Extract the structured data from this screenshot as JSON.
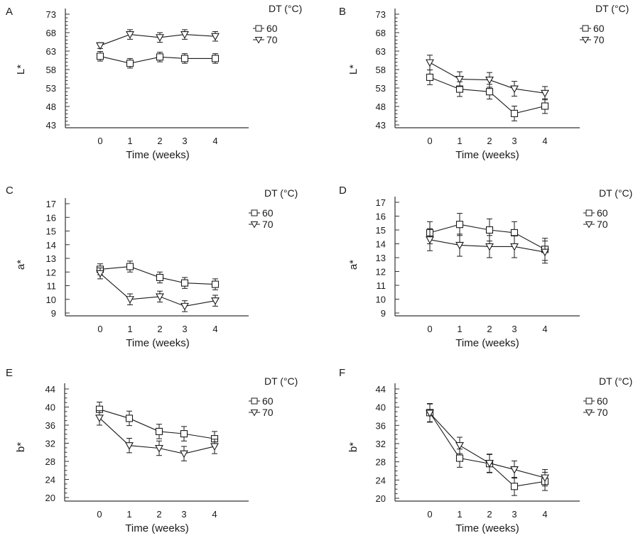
{
  "legend": {
    "title": "DT (°C)",
    "entries": [
      {
        "label": "60",
        "marker": "square-icon"
      },
      {
        "label": "70",
        "marker": "triangle-down-icon"
      }
    ]
  },
  "colors": {
    "line": "#1a1a1a",
    "axis": "#333333",
    "background": "#ffffff"
  },
  "chart_data": [
    {
      "type": "line",
      "panel": "A",
      "title": "",
      "xlabel": "Time (weeks)",
      "ylabel": "L*",
      "x": [
        0,
        1,
        2,
        3,
        4
      ],
      "x_ticks": [
        "0",
        "1",
        "2",
        "3",
        "4"
      ],
      "ylim": [
        43,
        73
      ],
      "y_ticks": [
        43,
        48,
        53,
        58,
        63,
        68,
        73
      ],
      "legend_title": "DT (°C)",
      "legend_position": "right",
      "grid": false,
      "series": [
        {
          "name": "60",
          "marker": "square",
          "values": [
            61.6,
            59.7,
            61.4,
            61.0,
            61.0
          ],
          "error": [
            1.3,
            1.3,
            1.3,
            1.3,
            1.3
          ]
        },
        {
          "name": "70",
          "marker": "triangle-down",
          "values": [
            64.5,
            67.5,
            66.7,
            67.5,
            67.0
          ],
          "error": [
            0.8,
            1.3,
            1.3,
            1.3,
            1.3
          ]
        }
      ]
    },
    {
      "type": "line",
      "panel": "B",
      "title": "",
      "xlabel": "Time (weeks)",
      "ylabel": "L*",
      "x": [
        0,
        1,
        2,
        3,
        4
      ],
      "x_ticks": [
        "0",
        "1",
        "2",
        "3",
        "4"
      ],
      "ylim": [
        43,
        73
      ],
      "y_ticks": [
        43,
        48,
        53,
        58,
        63,
        68,
        73
      ],
      "legend_title": "DT (°C)",
      "legend_position": "right",
      "grid": false,
      "series": [
        {
          "name": "60",
          "marker": "square",
          "values": [
            55.9,
            52.7,
            52.0,
            46.1,
            48.1
          ],
          "error": [
            2.0,
            2.0,
            2.0,
            2.0,
            2.0
          ]
        },
        {
          "name": "70",
          "marker": "triangle-down",
          "values": [
            59.9,
            55.4,
            55.2,
            52.8,
            51.6
          ],
          "error": [
            2.0,
            2.0,
            2.0,
            2.0,
            1.8
          ]
        }
      ]
    },
    {
      "type": "line",
      "panel": "C",
      "title": "",
      "xlabel": "Time (weeks)",
      "ylabel": "a*",
      "x": [
        0,
        1,
        2,
        3,
        4
      ],
      "x_ticks": [
        "0",
        "1",
        "2",
        "3",
        "4"
      ],
      "ylim": [
        9,
        17
      ],
      "y_ticks": [
        9,
        10,
        11,
        12,
        13,
        14,
        15,
        16,
        17
      ],
      "legend_title": "DT (°C)",
      "legend_position": "right",
      "grid": false,
      "series": [
        {
          "name": "60",
          "marker": "square",
          "values": [
            12.2,
            12.4,
            11.6,
            11.2,
            11.1
          ],
          "error": [
            0.4,
            0.4,
            0.4,
            0.4,
            0.4
          ]
        },
        {
          "name": "70",
          "marker": "triangle-down",
          "values": [
            11.9,
            10.0,
            10.2,
            9.5,
            9.9
          ],
          "error": [
            0.4,
            0.4,
            0.4,
            0.4,
            0.4
          ]
        }
      ]
    },
    {
      "type": "line",
      "panel": "D",
      "title": "",
      "xlabel": "Time (weeks)",
      "ylabel": "a*",
      "x": [
        0,
        1,
        2,
        3,
        4
      ],
      "x_ticks": [
        "0",
        "1",
        "2",
        "3",
        "4"
      ],
      "ylim": [
        9,
        17
      ],
      "y_ticks": [
        9,
        10,
        11,
        12,
        13,
        14,
        15,
        16,
        17
      ],
      "legend_title": "DT (°C)",
      "legend_position": "right",
      "grid": false,
      "series": [
        {
          "name": "60",
          "marker": "square",
          "values": [
            14.8,
            15.4,
            15.0,
            14.8,
            13.6
          ],
          "error": [
            0.8,
            0.8,
            0.8,
            0.8,
            0.8
          ]
        },
        {
          "name": "70",
          "marker": "triangle-down",
          "values": [
            14.3,
            13.9,
            13.8,
            13.8,
            13.4
          ],
          "error": [
            0.8,
            0.8,
            0.8,
            0.8,
            0.8
          ]
        }
      ]
    },
    {
      "type": "line",
      "panel": "E",
      "title": "",
      "xlabel": "Time (weeks)",
      "ylabel": "b*",
      "x": [
        0,
        1,
        2,
        3,
        4
      ],
      "x_ticks": [
        "0",
        "1",
        "2",
        "3",
        "4"
      ],
      "ylim": [
        20,
        44
      ],
      "y_ticks": [
        20,
        24,
        28,
        32,
        36,
        40,
        44
      ],
      "legend_title": "DT (°C)",
      "legend_position": "right",
      "grid": false,
      "series": [
        {
          "name": "60",
          "marker": "square",
          "values": [
            39.5,
            37.5,
            34.6,
            34.1,
            33.0
          ],
          "error": [
            1.6,
            1.6,
            1.6,
            1.6,
            1.6
          ]
        },
        {
          "name": "70",
          "marker": "triangle-down",
          "values": [
            37.6,
            31.5,
            30.9,
            29.7,
            31.3
          ],
          "error": [
            1.6,
            1.6,
            1.6,
            1.6,
            1.6
          ]
        }
      ]
    },
    {
      "type": "line",
      "panel": "F",
      "title": "",
      "xlabel": "Time (weeks)",
      "ylabel": "b*",
      "x": [
        0,
        1,
        2,
        3,
        4
      ],
      "x_ticks": [
        "0",
        "1",
        "2",
        "3",
        "4"
      ],
      "ylim": [
        20,
        44
      ],
      "y_ticks": [
        20,
        24,
        28,
        32,
        36,
        40,
        44
      ],
      "legend_title": "DT (°C)",
      "legend_position": "right",
      "grid": false,
      "series": [
        {
          "name": "60",
          "marker": "square",
          "values": [
            38.8,
            28.8,
            27.6,
            22.6,
            23.7
          ],
          "error": [
            2.0,
            2.0,
            2.0,
            2.0,
            2.0
          ]
        },
        {
          "name": "70",
          "marker": "triangle-down",
          "values": [
            38.7,
            31.6,
            27.7,
            26.3,
            24.5
          ],
          "error": [
            2.0,
            1.8,
            2.0,
            1.9,
            1.8
          ]
        }
      ]
    }
  ]
}
